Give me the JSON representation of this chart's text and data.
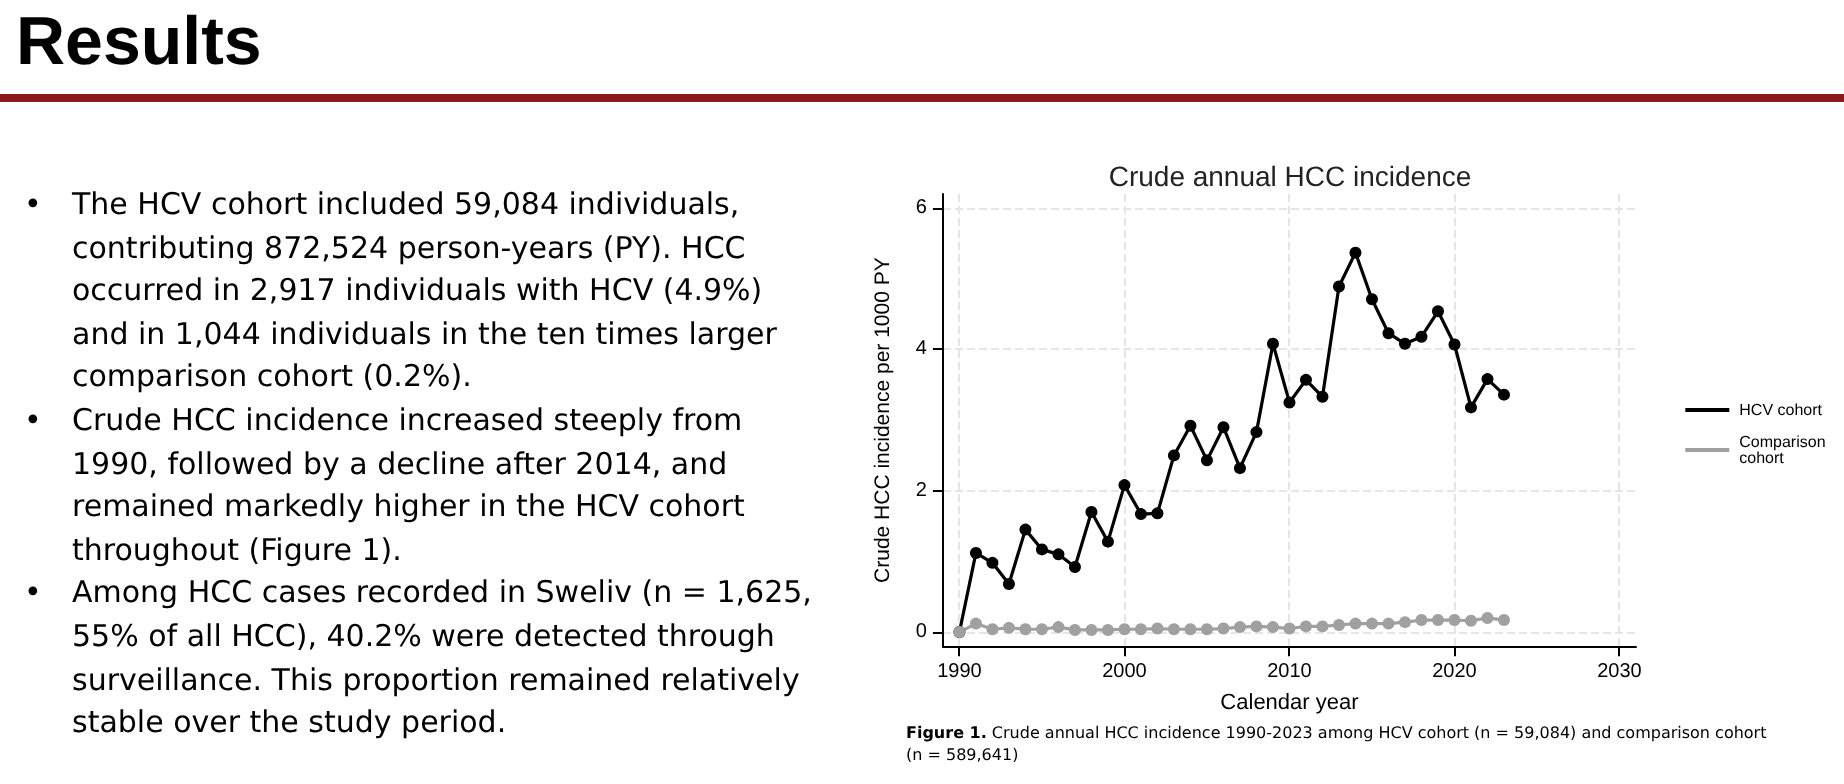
{
  "chart_data": {
    "type": "line",
    "title": "Crude annual HCC incidence",
    "xlabel": "Calendar year",
    "ylabel": "Crude HCC incidence per 1000 PY",
    "annotations": [
      "Results",
      "• The HCV cohort included 59,084 individuals, contributing 872,524 person-years (PY). HCC occurred in 2,917 individuals with HCV (4.9%) and in 1,044 individuals in the ten times larger comparison cohort (0.2%).",
      "• Crude HCC incidence increased steeply from 1990, followed by a decline after 2014, and remained markedly higher in the HCV cohort throughout (Figure 1).",
      "• Among HCC cases recorded in Sweliv (n = 1,625, 55% of all HCC), 40.2% were detected through surveillance. This proportion remained relatively stable over the study period.",
      "Figure 1. Crude annual HCC incidence 1990-2023 among HCV cohort (n = 59,084) and comparison cohort (n = 589,641)"
    ],
    "x": [
      1990,
      1991,
      1992,
      1993,
      1994,
      1995,
      1996,
      1997,
      1998,
      1999,
      2000,
      2001,
      2002,
      2003,
      2004,
      2005,
      2006,
      2007,
      2008,
      2009,
      2010,
      2011,
      2012,
      2013,
      2014,
      2015,
      2016,
      2017,
      2018,
      2019,
      2020,
      2021,
      2022,
      2023
    ],
    "series": [
      {
        "name": "HCV cohort",
        "color": "#000000",
        "values": [
          0,
          1.12,
          0.98,
          0.68,
          1.45,
          1.17,
          1.1,
          0.92,
          1.7,
          1.28,
          2.08,
          1.67,
          1.68,
          2.5,
          2.92,
          2.43,
          2.9,
          2.32,
          2.83,
          4.08,
          3.25,
          3.57,
          3.33,
          4.89,
          5.37,
          4.71,
          4.23,
          4.08,
          4.18,
          4.54,
          4.07,
          3.18,
          3.58,
          3.36
        ]
      },
      {
        "name": "Comparison cohort",
        "color": "#a0a0a0",
        "values": [
          0,
          0.12,
          0.04,
          0.06,
          0.04,
          0.04,
          0.07,
          0.03,
          0.03,
          0.03,
          0.04,
          0.04,
          0.05,
          0.04,
          0.04,
          0.04,
          0.05,
          0.07,
          0.08,
          0.07,
          0.05,
          0.08,
          0.08,
          0.1,
          0.12,
          0.12,
          0.12,
          0.14,
          0.17,
          0.17,
          0.17,
          0.16,
          0.2,
          0.17
        ]
      }
    ],
    "xlim": [
      1989,
      2031
    ],
    "xticks": [
      1990,
      2000,
      2010,
      2020,
      2030
    ],
    "ylim": [
      -0.2,
      6.2
    ],
    "yticks": [
      0,
      2,
      4,
      6
    ],
    "grid": true,
    "legend": "right",
    "marker": "circle",
    "line_style": "solid"
  }
}
